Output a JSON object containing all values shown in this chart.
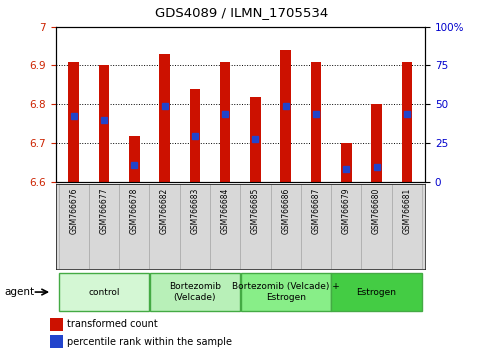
{
  "title": "GDS4089 / ILMN_1705534",
  "samples": [
    "GSM766676",
    "GSM766677",
    "GSM766678",
    "GSM766682",
    "GSM766683",
    "GSM766684",
    "GSM766685",
    "GSM766686",
    "GSM766687",
    "GSM766679",
    "GSM766680",
    "GSM766681"
  ],
  "red_top": [
    6.91,
    6.9,
    6.72,
    6.93,
    6.84,
    6.91,
    6.82,
    6.94,
    6.91,
    6.7,
    6.8,
    6.91
  ],
  "blue_pos": [
    6.77,
    6.76,
    6.645,
    6.795,
    6.72,
    6.775,
    6.71,
    6.795,
    6.775,
    6.635,
    6.64,
    6.775
  ],
  "y_min": 6.6,
  "y_max": 7.0,
  "y_ticks_left": [
    6.6,
    6.7,
    6.8,
    6.9,
    7.0
  ],
  "y_ticks_right": [
    0,
    25,
    50,
    75,
    100
  ],
  "groups": [
    {
      "label": "control",
      "start": 0,
      "end": 3,
      "color": "#d4f7d4"
    },
    {
      "label": "Bortezomib\n(Velcade)",
      "start": 3,
      "end": 6,
      "color": "#b8f0b8"
    },
    {
      "label": "Bortezomib (Velcade) +\nEstrogen",
      "start": 6,
      "end": 9,
      "color": "#88ee88"
    },
    {
      "label": "Estrogen",
      "start": 9,
      "end": 12,
      "color": "#44cc44"
    }
  ],
  "bar_color": "#cc1100",
  "blue_color": "#2244cc",
  "bar_bottom": 6.6,
  "bar_width": 0.35,
  "bg_color": "#ffffff",
  "plot_bg": "#ffffff",
  "legend_red": "transformed count",
  "legend_blue": "percentile rank within the sample",
  "agent_label": "agent",
  "left_tick_color": "#cc2200",
  "right_tick_color": "#0000cc",
  "grid_ticks": [
    6.7,
    6.8,
    6.9
  ]
}
